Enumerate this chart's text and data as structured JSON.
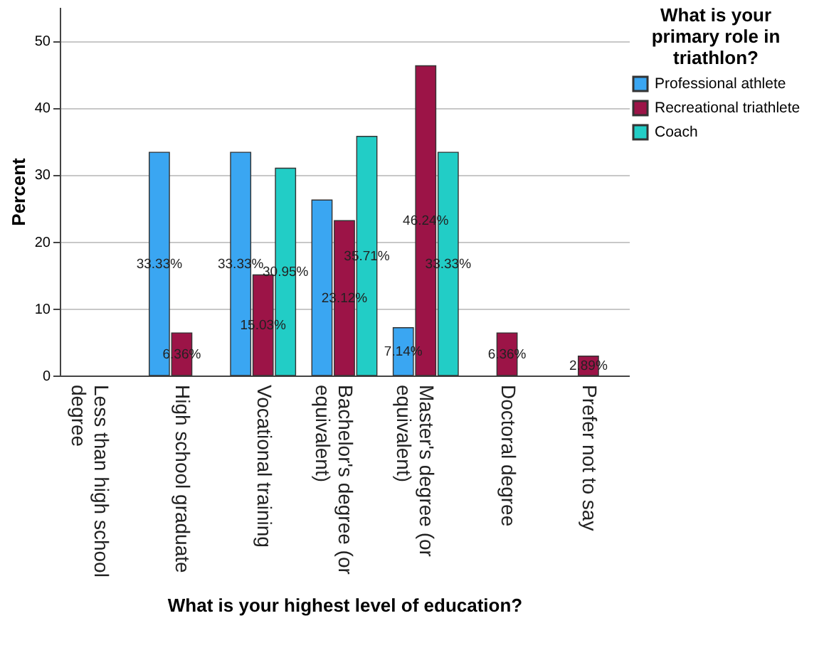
{
  "chart_data": {
    "type": "bar",
    "xlabel": "What is your highest level of education?",
    "ylabel": "Percent",
    "legend_title": "What is your primary role in triathlon?",
    "legend": "top right",
    "grid": "y",
    "categories": [
      "Less than high school degree",
      "High school graduate",
      "Vocational training",
      "Bachelor's degree (or equivalent)",
      "Master's degree (or equivalent)",
      "Doctoral degree",
      "Prefer not to say"
    ],
    "ylim": [
      0,
      55
    ],
    "yticks": [
      0,
      10,
      20,
      30,
      40,
      50
    ],
    "series": [
      {
        "name": "Professional athlete",
        "color": "#3aa6f2",
        "values": [
          null,
          33.33,
          33.33,
          26.2,
          7.14,
          null,
          null
        ],
        "value_labels": [
          null,
          "33.33%",
          "33.33%",
          null,
          "7.14%",
          null,
          null
        ]
      },
      {
        "name": "Recreational triathlete",
        "color": "#9c1447",
        "values": [
          null,
          6.36,
          15.03,
          23.12,
          46.24,
          6.36,
          2.89
        ],
        "value_labels": [
          null,
          "6.36%",
          "15.03%",
          "23.12%",
          "46.24%",
          "6.36%",
          "2.89%"
        ]
      },
      {
        "name": "Coach",
        "color": "#22cdc6",
        "values": [
          null,
          null,
          30.95,
          35.71,
          33.33,
          null,
          null
        ],
        "value_labels": [
          null,
          null,
          "30.95%",
          "35.71%",
          "33.33%",
          null,
          null
        ]
      }
    ]
  }
}
